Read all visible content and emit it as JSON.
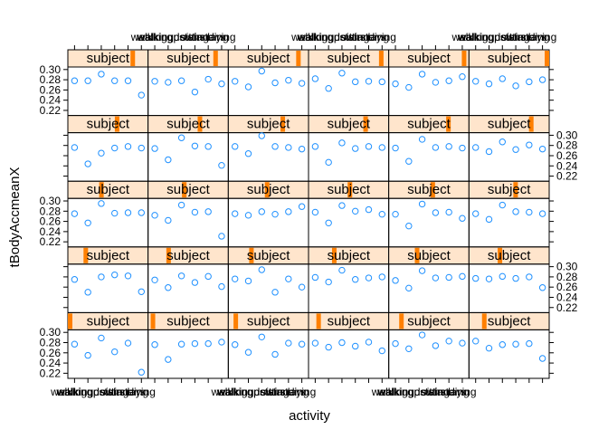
{
  "chart_data": {
    "type": "scatter",
    "layout": {
      "columns": 6,
      "rows": 5
    },
    "xlabel": "activity",
    "ylabel": "tBodyAccmeanX",
    "strip_label": "subject",
    "categories": [
      "walking",
      "walkingupstairs",
      "walkingdownstairs",
      "sitting",
      "standing",
      "laying"
    ],
    "ylim": [
      0.21,
      0.305
    ],
    "yticks": [
      "0.22",
      "0.24",
      "0.26",
      "0.28",
      "0.30"
    ],
    "grid": false,
    "legend": "none",
    "colors": {
      "points": "#1e90ff",
      "strip_bg": "#ffe5cc",
      "strip_marker": "#ff7f00",
      "axis": "#000000"
    },
    "panels": [
      {
        "subject": 1,
        "values": [
          0.277,
          0.255,
          0.289,
          0.262,
          0.279,
          0.222
        ]
      },
      {
        "subject": 2,
        "values": [
          0.276,
          0.247,
          0.277,
          0.278,
          0.278,
          0.281
        ]
      },
      {
        "subject": 3,
        "values": [
          0.276,
          0.261,
          0.291,
          0.257,
          0.279,
          0.277
        ]
      },
      {
        "subject": 4,
        "values": [
          0.279,
          0.271,
          0.28,
          0.273,
          0.281,
          0.264
        ]
      },
      {
        "subject": 5,
        "values": [
          0.278,
          0.268,
          0.295,
          0.274,
          0.283,
          0.279
        ]
      },
      {
        "subject": 6,
        "values": [
          0.283,
          0.269,
          0.276,
          0.277,
          0.278,
          0.249
        ]
      },
      {
        "subject": 7,
        "values": [
          0.275,
          0.25,
          0.28,
          0.284,
          0.282,
          0.251
        ]
      },
      {
        "subject": 8,
        "values": [
          0.274,
          0.259,
          0.282,
          0.269,
          0.281,
          0.261
        ]
      },
      {
        "subject": 9,
        "values": [
          0.276,
          0.272,
          0.294,
          0.25,
          0.276,
          0.26
        ]
      },
      {
        "subject": 10,
        "values": [
          0.279,
          0.27,
          0.293,
          0.275,
          0.278,
          0.28
        ]
      },
      {
        "subject": 11,
        "values": [
          0.273,
          0.258,
          0.292,
          0.278,
          0.279,
          0.281
        ]
      },
      {
        "subject": 12,
        "values": [
          0.277,
          0.276,
          0.281,
          0.277,
          0.28,
          0.259
        ]
      },
      {
        "subject": 13,
        "values": [
          0.275,
          0.257,
          0.295,
          0.276,
          0.277,
          0.277
        ]
      },
      {
        "subject": 14,
        "values": [
          0.272,
          0.262,
          0.292,
          0.278,
          0.279,
          0.231
        ]
      },
      {
        "subject": 15,
        "values": [
          0.275,
          0.272,
          0.279,
          0.274,
          0.279,
          0.289
        ]
      },
      {
        "subject": 16,
        "values": [
          0.278,
          0.257,
          0.291,
          0.28,
          0.283,
          0.274
        ]
      },
      {
        "subject": 17,
        "values": [
          0.274,
          0.251,
          0.294,
          0.277,
          0.278,
          0.266
        ]
      },
      {
        "subject": 18,
        "values": [
          0.275,
          0.264,
          0.292,
          0.279,
          0.278,
          0.275
        ]
      },
      {
        "subject": 19,
        "values": [
          0.276,
          0.244,
          0.265,
          0.275,
          0.278,
          0.275
        ]
      },
      {
        "subject": 20,
        "values": [
          0.274,
          0.252,
          0.295,
          0.279,
          0.278,
          0.241
        ]
      },
      {
        "subject": 21,
        "values": [
          0.278,
          0.264,
          0.299,
          0.278,
          0.276,
          0.273
        ]
      },
      {
        "subject": 22,
        "values": [
          0.278,
          0.247,
          0.285,
          0.274,
          0.278,
          0.276
        ]
      },
      {
        "subject": 23,
        "values": [
          0.275,
          0.249,
          0.292,
          0.276,
          0.278,
          0.275
        ]
      },
      {
        "subject": 24,
        "values": [
          0.276,
          0.268,
          0.287,
          0.272,
          0.281,
          0.273
        ]
      },
      {
        "subject": 25,
        "values": [
          0.278,
          0.278,
          0.291,
          0.278,
          0.278,
          0.25
        ]
      },
      {
        "subject": 26,
        "values": [
          0.277,
          0.275,
          0.278,
          0.256,
          0.281,
          0.272
        ]
      },
      {
        "subject": 27,
        "values": [
          0.277,
          0.266,
          0.297,
          0.274,
          0.279,
          0.273
        ]
      },
      {
        "subject": 28,
        "values": [
          0.282,
          0.263,
          0.293,
          0.276,
          0.277,
          0.276
        ]
      },
      {
        "subject": 29,
        "values": [
          0.272,
          0.265,
          0.291,
          0.275,
          0.278,
          0.286
        ]
      },
      {
        "subject": 30,
        "values": [
          0.277,
          0.272,
          0.282,
          0.268,
          0.276,
          0.28
        ]
      }
    ]
  }
}
